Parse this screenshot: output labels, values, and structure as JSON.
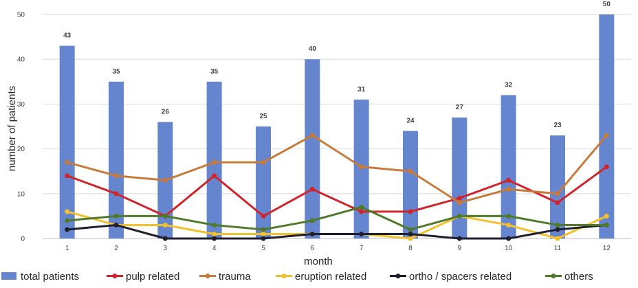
{
  "chart_data": {
    "type": "bar",
    "title": "",
    "xlabel": "month",
    "ylabel": "number of patients",
    "ylim": [
      0,
      50
    ],
    "yticks": [
      0,
      10,
      20,
      30,
      40,
      50
    ],
    "categories": [
      "1",
      "2",
      "3",
      "4",
      "5",
      "6",
      "7",
      "8",
      "9",
      "10",
      "11",
      "12"
    ],
    "grid": true,
    "legend_position": "bottom",
    "series": [
      {
        "name": "total patients",
        "kind": "bar",
        "color": "#6586CF",
        "values": [
          43,
          35,
          26,
          35,
          25,
          40,
          31,
          24,
          27,
          32,
          23,
          50
        ],
        "data_labels": true
      },
      {
        "name": "pulp related",
        "kind": "line",
        "color": "#D0242B",
        "values": [
          14,
          10,
          5,
          14,
          5,
          11,
          6,
          6,
          9,
          13,
          8,
          16
        ]
      },
      {
        "name": "trauma",
        "kind": "line",
        "color": "#C77B3B",
        "values": [
          17,
          14,
          13,
          17,
          17,
          23,
          16,
          15,
          8,
          11,
          10,
          23
        ]
      },
      {
        "name": "eruption related",
        "kind": "line",
        "color": "#F2C12E",
        "values": [
          6,
          3,
          3,
          1,
          1,
          1,
          1,
          0,
          5,
          3,
          0,
          5
        ]
      },
      {
        "name": "ortho / spacers related",
        "kind": "line",
        "color": "#1F1F2E",
        "values": [
          2,
          3,
          0,
          0,
          0,
          1,
          1,
          1,
          0,
          0,
          2,
          3
        ]
      },
      {
        "name": "others",
        "kind": "line",
        "color": "#4F7A2A",
        "values": [
          4,
          5,
          5,
          3,
          2,
          4,
          7,
          2,
          5,
          5,
          3,
          3
        ]
      }
    ]
  }
}
